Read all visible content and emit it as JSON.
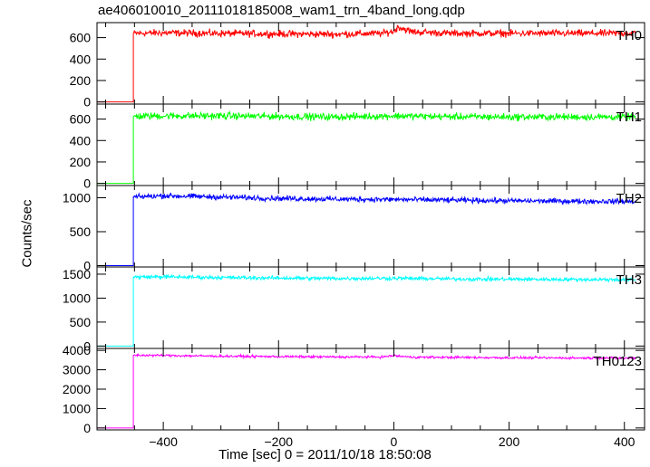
{
  "chart_data": {
    "type": "line",
    "title": "ae406010010_20111018185008_wam1_trn_4band_long.qdp",
    "xlabel": "Time [sec] 0 = 2011/10/18 18:50:08",
    "ylabel": "Counts/sec",
    "xlim": [
      -515,
      435
    ],
    "xticks": [
      -400,
      -200,
      0,
      200,
      400
    ],
    "grid": false,
    "step_at_x": -452,
    "panels": [
      {
        "name": "TH0",
        "color": "#ff0000",
        "ylim": [
          -20,
          740
        ],
        "yticks": [
          0,
          200,
          400,
          600
        ],
        "x": [
          -515,
          -452,
          -452,
          -400,
          -300,
          -200,
          -100,
          -20,
          0,
          8,
          30,
          100,
          200,
          300,
          420
        ],
        "y": [
          0,
          0,
          640,
          645,
          640,
          635,
          632,
          640,
          660,
          700,
          655,
          640,
          640,
          640,
          640
        ],
        "noise": 25
      },
      {
        "name": "TH1",
        "color": "#00ff00",
        "ylim": [
          -20,
          740
        ],
        "yticks": [
          0,
          200,
          400,
          600
        ],
        "x": [
          -515,
          -452,
          -452,
          -400,
          -300,
          -200,
          -100,
          0,
          100,
          200,
          300,
          420
        ],
        "y": [
          0,
          0,
          625,
          630,
          630,
          625,
          620,
          630,
          622,
          620,
          620,
          620
        ],
        "noise": 25
      },
      {
        "name": "TH2",
        "color": "#0000ff",
        "ylim": [
          -20,
          1180
        ],
        "yticks": [
          0,
          500,
          1000
        ],
        "x": [
          -515,
          -452,
          -452,
          -400,
          -300,
          -200,
          -100,
          0,
          100,
          200,
          300,
          420
        ],
        "y": [
          0,
          0,
          1010,
          1030,
          1010,
          990,
          980,
          975,
          965,
          955,
          950,
          945
        ],
        "noise": 30
      },
      {
        "name": "TH3",
        "color": "#00ffff",
        "ylim": [
          -50,
          1650
        ],
        "yticks": [
          0,
          500,
          1000,
          1500
        ],
        "x": [
          -515,
          -452,
          -452,
          -400,
          -300,
          -200,
          -100,
          0,
          100,
          200,
          300,
          420
        ],
        "y": [
          0,
          0,
          1440,
          1445,
          1430,
          1420,
          1410,
          1415,
          1400,
          1395,
          1390,
          1385
        ],
        "noise": 30
      },
      {
        "name": "TH0123",
        "color": "#ff00ff",
        "ylim": [
          -100,
          4100
        ],
        "yticks": [
          0,
          1000,
          2000,
          3000,
          4000
        ],
        "x": [
          -515,
          -452,
          -452,
          -400,
          -300,
          -200,
          -100,
          -20,
          0,
          10,
          30,
          100,
          200,
          300,
          420
        ],
        "y": [
          0,
          0,
          3750,
          3740,
          3700,
          3680,
          3660,
          3660,
          3730,
          3700,
          3650,
          3640,
          3620,
          3610,
          3600
        ],
        "noise": 45
      }
    ]
  }
}
